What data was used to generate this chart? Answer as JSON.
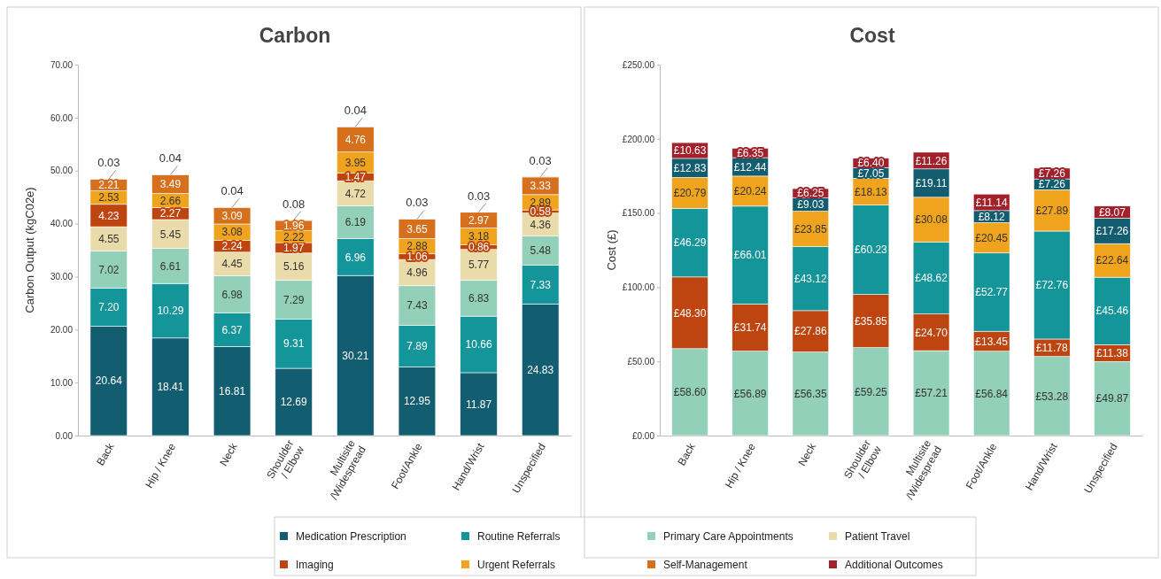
{
  "chart_data": [
    {
      "type": "bar",
      "stacked": true,
      "title": "Carbon",
      "ylabel": "Carbon Output (kgC02e)",
      "legend": "bottom",
      "categories": [
        "Back",
        "Hip / Knee",
        "Neck",
        "Shoulder / Elbow",
        "Multisite /Widespread",
        "Foot/Ankle",
        "Hand/Wrist",
        "Unspecified"
      ],
      "ylim": [
        0,
        70
      ],
      "yticks": [
        {
          "value": 0,
          "label": "0.00"
        },
        {
          "value": 10,
          "label": "10.00"
        },
        {
          "value": 20,
          "label": "20.00"
        },
        {
          "value": 30,
          "label": "30.00"
        },
        {
          "value": 40,
          "label": "40.00"
        },
        {
          "value": 50,
          "label": "50.00"
        },
        {
          "value": 60,
          "label": "60.00"
        },
        {
          "value": 70,
          "label": "70.00"
        }
      ],
      "series": [
        {
          "name": "Medication Prescription",
          "color": "#135d70",
          "values": [
            20.64,
            18.41,
            16.81,
            12.69,
            30.21,
            12.95,
            11.87,
            24.83
          ],
          "value_labels": [
            "20.64",
            "18.41",
            "16.81",
            "12.69",
            "30.21",
            "12.95",
            "11.87",
            "24.83"
          ]
        },
        {
          "name": "Routine Referrals",
          "color": "#13959a",
          "values": [
            7.2,
            10.29,
            6.37,
            9.31,
            6.96,
            7.89,
            10.66,
            7.33
          ],
          "value_labels": [
            "7.20",
            "10.29",
            "6.37",
            "9.31",
            "6.96",
            "7.89",
            "10.66",
            "7.33"
          ]
        },
        {
          "name": "Primary Care Appointments",
          "color": "#93d0b9",
          "values": [
            7.02,
            6.61,
            6.98,
            7.29,
            6.19,
            7.43,
            6.83,
            5.48
          ],
          "value_labels": [
            "7.02",
            "6.61",
            "6.98",
            "7.29",
            "6.19",
            "7.43",
            "6.83",
            "5.48"
          ]
        },
        {
          "name": "Patient Travel",
          "color": "#eadcaa",
          "values": [
            4.55,
            5.45,
            4.45,
            5.16,
            4.72,
            4.96,
            5.77,
            4.36
          ],
          "value_labels": [
            "4.55",
            "5.45",
            "4.45",
            "5.16",
            "4.72",
            "4.96",
            "5.77",
            "4.36"
          ]
        },
        {
          "name": "Imaging",
          "color": "#bf4510",
          "values": [
            4.23,
            2.27,
            2.24,
            1.97,
            1.47,
            1.06,
            0.86,
            0.58
          ],
          "value_labels": [
            "4.23",
            "2.27",
            "2.24",
            "1.97",
            "1.47",
            "1.06",
            "0.86",
            "0.58"
          ]
        },
        {
          "name": "Urgent Referrals",
          "color": "#f0a31c",
          "values": [
            2.53,
            2.66,
            3.08,
            2.22,
            3.95,
            2.88,
            3.18,
            2.89
          ],
          "value_labels": [
            "2.53",
            "2.66",
            "3.08",
            "2.22",
            "3.95",
            "2.88",
            "3.18",
            "2.89"
          ]
        },
        {
          "name": "Self-Management",
          "color": "#d6701d",
          "values": [
            2.21,
            3.49,
            3.09,
            1.96,
            4.76,
            3.65,
            2.97,
            3.33
          ],
          "value_labels": [
            "2.21",
            "3.49",
            "3.09",
            "1.96",
            "4.76",
            "3.65",
            "2.97",
            "3.33"
          ]
        },
        {
          "name": "Additional Outcomes",
          "color": "#a2212b",
          "values": [
            0.03,
            0.04,
            0.04,
            0.08,
            0.04,
            0.03,
            0.03,
            0.03
          ],
          "value_labels": [
            "0.03",
            "0.04",
            "0.04",
            "0.08",
            "0.04",
            "0.03",
            "0.03",
            "0.03"
          ]
        }
      ]
    },
    {
      "type": "bar",
      "stacked": true,
      "title": "Cost",
      "ylabel": "Cost (£)",
      "categories": [
        "Back",
        "Hip / Knee",
        "Neck",
        "Shoulder / Elbow",
        "Multisite /Widespread",
        "Foot/Ankle",
        "Hand/Wrist",
        "Unspecified"
      ],
      "ylim": [
        0,
        250
      ],
      "yticks": [
        {
          "value": 0,
          "label": "£0.00"
        },
        {
          "value": 50,
          "label": "£50.00"
        },
        {
          "value": 100,
          "label": "£100.00"
        },
        {
          "value": 150,
          "label": "£150.00"
        },
        {
          "value": 200,
          "label": "£200.00"
        },
        {
          "value": 250,
          "label": "£250.00"
        }
      ],
      "series": [
        {
          "color": "#93d0b9",
          "values": [
            58.6,
            56.89,
            56.35,
            59.25,
            57.21,
            56.84,
            53.28,
            49.87
          ],
          "value_labels": [
            "£58.60",
            "£56.89",
            "£56.35",
            "£59.25",
            "£57.21",
            "£56.84",
            "£53.28",
            "£49.87"
          ]
        },
        {
          "color": "#bf4510",
          "values": [
            48.3,
            31.74,
            27.86,
            35.85,
            24.7,
            13.45,
            11.78,
            11.38
          ],
          "value_labels": [
            "£48.30",
            "£31.74",
            "£27.86",
            "£35.85",
            "£24.70",
            "£13.45",
            "£11.78",
            "£11.38"
          ]
        },
        {
          "color": "#13959a",
          "values": [
            46.29,
            66.01,
            43.12,
            60.23,
            48.62,
            52.77,
            72.76,
            45.46
          ],
          "value_labels": [
            "£46.29",
            "£66.01",
            "£43.12",
            "£60.23",
            "£48.62",
            "£52.77",
            "£72.76",
            "£45.46"
          ]
        },
        {
          "color": "#f0a31c",
          "values": [
            20.79,
            20.24,
            23.85,
            18.13,
            30.08,
            20.45,
            27.89,
            22.64
          ],
          "value_labels": [
            "£20.79",
            "£20.24",
            "£23.85",
            "£18.13",
            "£30.08",
            "£20.45",
            "£27.89",
            "£22.64"
          ]
        },
        {
          "color": "#135d70",
          "values": [
            12.83,
            12.44,
            9.03,
            7.05,
            19.11,
            8.12,
            7.26,
            17.26
          ],
          "value_labels": [
            "£12.83",
            "£12.44",
            "£9.03",
            "£7.05",
            "£19.11",
            "£8.12",
            "£7.26",
            "£17.26"
          ]
        },
        {
          "color": "#a2212b",
          "values": [
            10.63,
            6.35,
            6.25,
            6.4,
            11.26,
            11.14,
            7.26,
            8.07
          ],
          "value_labels": [
            "£10.63",
            "£6.35",
            "£6.25",
            "£6.40",
            "£11.26",
            "£11.14",
            "£7.26",
            "£8.07"
          ]
        }
      ]
    }
  ]
}
